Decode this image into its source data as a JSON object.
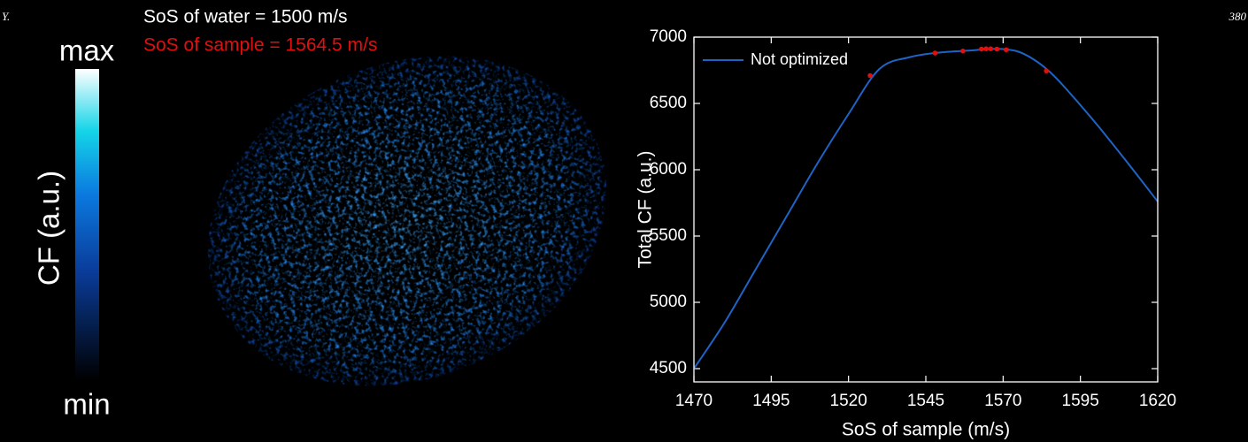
{
  "header": {
    "left_fragment": "Y.",
    "right_fragment": "380"
  },
  "image_panel": {
    "water_label": "SoS of water = 1500  m/s",
    "sample_label": "SoS of sample = 1564.5 m/s",
    "colorbar_max": "max",
    "colorbar_min": "min",
    "colorbar_label": "CF (a.u.)"
  },
  "chart_data": {
    "type": "line",
    "x": [
      1470,
      1480,
      1490,
      1500,
      1510,
      1520,
      1530,
      1540,
      1550,
      1560,
      1565,
      1570,
      1575,
      1580,
      1585,
      1590,
      1600,
      1610,
      1620
    ],
    "series": [
      {
        "name": "Not optimized",
        "color": "#1f63c4",
        "values": [
          4500,
          4850,
          5250,
          5650,
          6050,
          6420,
          6760,
          6850,
          6885,
          6900,
          6910,
          6910,
          6890,
          6830,
          6740,
          6620,
          6350,
          6060,
          5760
        ]
      }
    ],
    "markers": {
      "color": "#e01010",
      "x": [
        1527,
        1548,
        1557,
        1563,
        1564.5,
        1566,
        1568,
        1571,
        1584
      ],
      "values": [
        6710,
        6880,
        6895,
        6910,
        6912,
        6912,
        6910,
        6905,
        6745
      ]
    },
    "xlabel": "SoS of sample (m/s)",
    "ylabel": "Total CF (a.u.)",
    "xlim": [
      1470,
      1620
    ],
    "ylim": [
      4400,
      7000
    ],
    "xticks": [
      1470,
      1495,
      1520,
      1545,
      1570,
      1595,
      1620
    ],
    "yticks": [
      4500,
      5000,
      5500,
      6000,
      6500,
      7000
    ],
    "legend": "upper left"
  }
}
